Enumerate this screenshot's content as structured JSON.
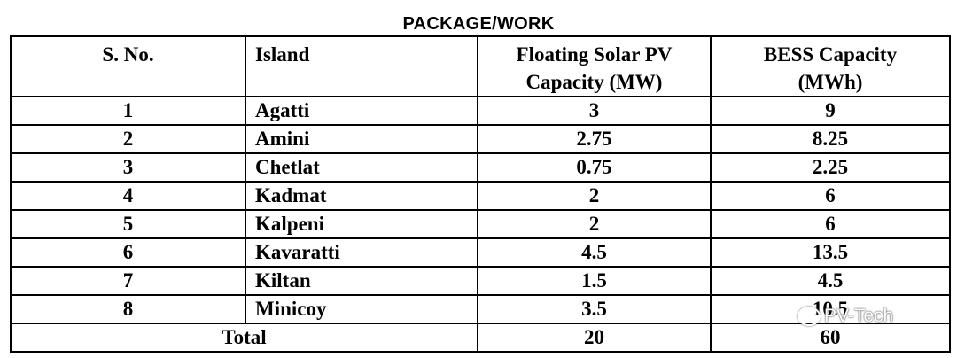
{
  "title": "PACKAGE/WORK",
  "headers": {
    "sno": "S. No.",
    "island": "Island",
    "pv_line1": "Floating Solar PV",
    "pv_line2": "Capacity (MW)",
    "bess_line1": "BESS Capacity",
    "bess_line2": "(MWh)"
  },
  "rows": [
    {
      "sno": "1",
      "island": "Agatti",
      "pv": "3",
      "bess": "9"
    },
    {
      "sno": "2",
      "island": "Amini",
      "pv": "2.75",
      "bess": "8.25"
    },
    {
      "sno": "3",
      "island": "Chetlat",
      "pv": "0.75",
      "bess": "2.25"
    },
    {
      "sno": "4",
      "island": "Kadmat",
      "pv": "2",
      "bess": "6"
    },
    {
      "sno": "5",
      "island": "Kalpeni",
      "pv": "2",
      "bess": "6"
    },
    {
      "sno": "6",
      "island": "Kavaratti",
      "pv": "4.5",
      "bess": "13.5"
    },
    {
      "sno": "7",
      "island": "Kiltan",
      "pv": "1.5",
      "bess": "4.5"
    },
    {
      "sno": "8",
      "island": "Minicoy",
      "pv": "3.5",
      "bess": "10.5"
    }
  ],
  "total": {
    "label": "Total",
    "pv": "20",
    "bess": "60"
  },
  "watermark": "PV-Tech"
}
